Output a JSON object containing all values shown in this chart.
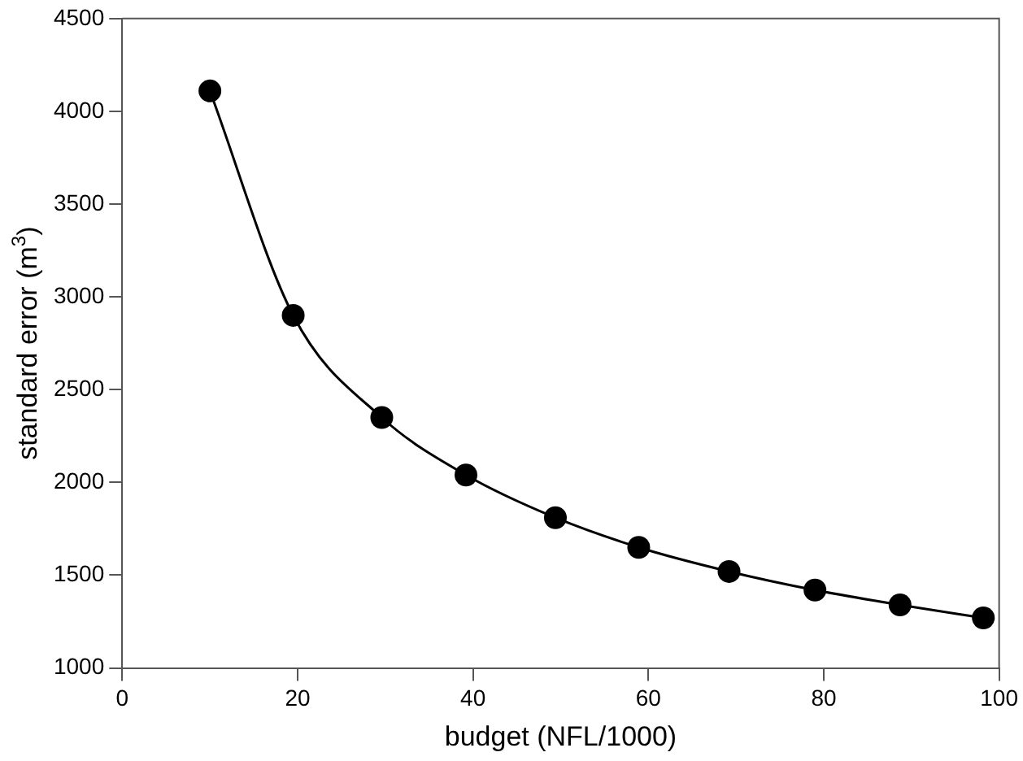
{
  "chart_data": {
    "type": "line",
    "xlabel": "budget (NFL/1000)",
    "ylabel": "standard error (m$^{3}$)",
    "x": [
      10,
      19.5,
      29.6,
      39.2,
      49.4,
      58.9,
      69.2,
      79,
      88.7,
      98.2
    ],
    "series": [
      {
        "color": "#000000",
        "values": [
          4110,
          2900,
          2350,
          2040,
          1810,
          1650,
          1520,
          1420,
          1340,
          1270
        ]
      }
    ],
    "xlim": [
      0,
      100
    ],
    "xticks": [
      0,
      20,
      40,
      60,
      80,
      100
    ],
    "ylim": [
      1000,
      4500
    ],
    "yticks": [
      1000,
      1500,
      2000,
      2500,
      3000,
      3500,
      4000,
      4500
    ],
    "grid": false,
    "legend": false,
    "marker": "circle",
    "line_style": "solid"
  }
}
